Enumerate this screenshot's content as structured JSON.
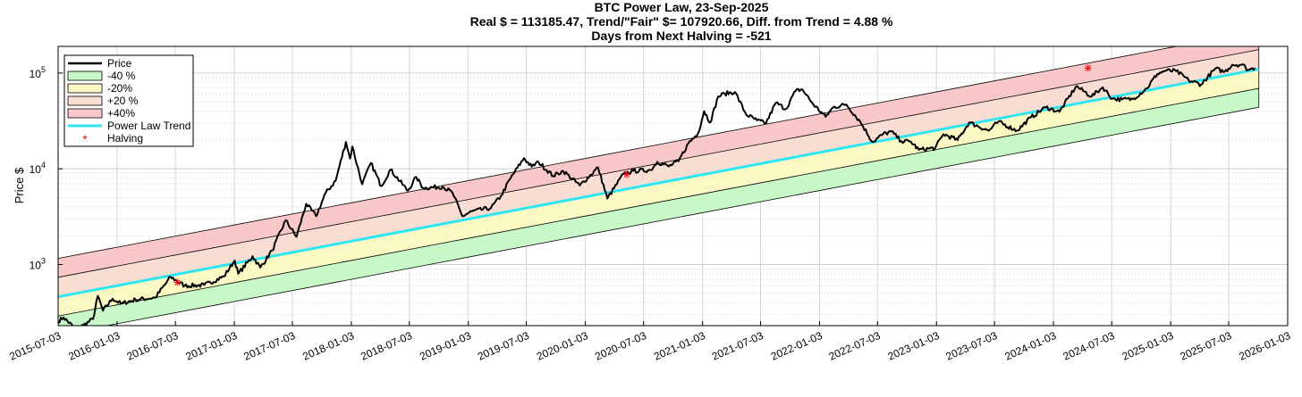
{
  "chart_data": {
    "type": "line",
    "title_lines": [
      "BTC Power Law, 23-Sep-2025",
      "Real $ = 113185.47, Trend/\"Fair\" $=  107920.66, Diff. from Trend = 4.88 %",
      "Days from Next Halving = -521"
    ],
    "ylabel": "Price $",
    "xlabel": "",
    "y_scale": "log",
    "ylim": [
      230,
      190000
    ],
    "xlim": [
      "2015-07-03",
      "2026-01-03"
    ],
    "x_ticks": [
      "2015-07-03",
      "2016-01-03",
      "2016-07-03",
      "2017-01-03",
      "2017-07-03",
      "2018-01-03",
      "2018-07-03",
      "2019-01-03",
      "2019-07-03",
      "2020-01-03",
      "2020-07-03",
      "2021-01-03",
      "2021-07-03",
      "2022-01-03",
      "2022-07-03",
      "2023-01-03",
      "2023-07-03",
      "2024-01-03",
      "2024-07-03",
      "2025-01-03",
      "2025-07-03",
      "2026-01-03"
    ],
    "y_tick_values": [
      1000,
      10000,
      100000
    ],
    "y_tick_labels": [
      {
        "base": "10",
        "exp": "3"
      },
      {
        "base": "10",
        "exp": "4"
      },
      {
        "base": "10",
        "exp": "5"
      }
    ],
    "grid": true,
    "legend_position": "top-left",
    "legend": [
      {
        "key": "price",
        "label": "Price",
        "kind": "line",
        "color": "#000000"
      },
      {
        "key": "m40",
        "label": "-40 %",
        "kind": "patch",
        "color": "#c8f7c8"
      },
      {
        "key": "m20",
        "label": "-20%",
        "kind": "patch",
        "color": "#fbf8c4"
      },
      {
        "key": "p20",
        "label": "+20 %",
        "kind": "patch",
        "color": "#f8ddd2"
      },
      {
        "key": "p40",
        "label": "+40%",
        "kind": "patch",
        "color": "#f8c7c8"
      },
      {
        "key": "trend",
        "label": "Power Law Trend",
        "kind": "line",
        "color": "#2ee6f2"
      },
      {
        "key": "halving",
        "label": "Halving",
        "kind": "marker",
        "color": "#e01010"
      }
    ],
    "band_colors": {
      "m40": "#c8f7c8",
      "m20": "#fbf8c4",
      "p20": "#f8ddd2",
      "p40": "#f8c7c8"
    },
    "trend": {
      "color": "#2ee6f2",
      "points": [
        {
          "date": "2015-07-03",
          "value": 460
        },
        {
          "date": "2025-09-23",
          "value": 107920.66
        }
      ]
    },
    "band_multipliers": {
      "upper_outer": 2.52,
      "upper_inner": 1.6,
      "lower_inner": 0.63,
      "lower_outer": 0.4
    },
    "halving": [
      {
        "date": "2016-07-09",
        "value": 650
      },
      {
        "date": "2020-05-11",
        "value": 8700
      },
      {
        "date": "2024-04-20",
        "value": 113000
      }
    ],
    "price": [
      {
        "date": "2015-07-03",
        "value": 255
      },
      {
        "date": "2015-07-20",
        "value": 280
      },
      {
        "date": "2015-08-25",
        "value": 215
      },
      {
        "date": "2015-09-20",
        "value": 232
      },
      {
        "date": "2015-10-20",
        "value": 270
      },
      {
        "date": "2015-11-04",
        "value": 470
      },
      {
        "date": "2015-11-20",
        "value": 330
      },
      {
        "date": "2015-12-20",
        "value": 440
      },
      {
        "date": "2016-01-15",
        "value": 390
      },
      {
        "date": "2016-03-01",
        "value": 430
      },
      {
        "date": "2016-05-01",
        "value": 450
      },
      {
        "date": "2016-06-18",
        "value": 740
      },
      {
        "date": "2016-08-01",
        "value": 600
      },
      {
        "date": "2016-10-01",
        "value": 610
      },
      {
        "date": "2016-12-01",
        "value": 750
      },
      {
        "date": "2017-01-04",
        "value": 1100
      },
      {
        "date": "2017-01-15",
        "value": 800
      },
      {
        "date": "2017-03-01",
        "value": 1220
      },
      {
        "date": "2017-03-25",
        "value": 930
      },
      {
        "date": "2017-05-01",
        "value": 1400
      },
      {
        "date": "2017-06-12",
        "value": 2900
      },
      {
        "date": "2017-07-16",
        "value": 1950
      },
      {
        "date": "2017-08-15",
        "value": 4300
      },
      {
        "date": "2017-09-15",
        "value": 3200
      },
      {
        "date": "2017-10-15",
        "value": 5600
      },
      {
        "date": "2017-11-15",
        "value": 7500
      },
      {
        "date": "2017-12-17",
        "value": 19100
      },
      {
        "date": "2017-12-30",
        "value": 12800
      },
      {
        "date": "2018-01-06",
        "value": 17100
      },
      {
        "date": "2018-02-06",
        "value": 6900
      },
      {
        "date": "2018-03-05",
        "value": 11500
      },
      {
        "date": "2018-04-06",
        "value": 6600
      },
      {
        "date": "2018-05-05",
        "value": 9800
      },
      {
        "date": "2018-06-28",
        "value": 5900
      },
      {
        "date": "2018-07-25",
        "value": 8200
      },
      {
        "date": "2018-08-15",
        "value": 6300
      },
      {
        "date": "2018-10-15",
        "value": 6500
      },
      {
        "date": "2018-11-15",
        "value": 5600
      },
      {
        "date": "2018-12-15",
        "value": 3200
      },
      {
        "date": "2019-01-15",
        "value": 3600
      },
      {
        "date": "2019-03-15",
        "value": 3900
      },
      {
        "date": "2019-04-15",
        "value": 5200
      },
      {
        "date": "2019-05-15",
        "value": 8000
      },
      {
        "date": "2019-06-26",
        "value": 12900
      },
      {
        "date": "2019-07-20",
        "value": 10500
      },
      {
        "date": "2019-08-10",
        "value": 11800
      },
      {
        "date": "2019-09-25",
        "value": 8400
      },
      {
        "date": "2019-10-26",
        "value": 9500
      },
      {
        "date": "2019-12-17",
        "value": 6700
      },
      {
        "date": "2020-02-12",
        "value": 10300
      },
      {
        "date": "2020-03-12",
        "value": 4900
      },
      {
        "date": "2020-05-01",
        "value": 8800
      },
      {
        "date": "2020-06-01",
        "value": 9500
      },
      {
        "date": "2020-07-25",
        "value": 9700
      },
      {
        "date": "2020-08-15",
        "value": 11800
      },
      {
        "date": "2020-09-20",
        "value": 10600
      },
      {
        "date": "2020-10-20",
        "value": 12000
      },
      {
        "date": "2020-11-20",
        "value": 18500
      },
      {
        "date": "2020-12-20",
        "value": 23500
      },
      {
        "date": "2021-01-08",
        "value": 40000
      },
      {
        "date": "2021-01-27",
        "value": 30400
      },
      {
        "date": "2021-02-21",
        "value": 57000
      },
      {
        "date": "2021-03-13",
        "value": 61000
      },
      {
        "date": "2021-04-14",
        "value": 63500
      },
      {
        "date": "2021-05-19",
        "value": 37000
      },
      {
        "date": "2021-06-22",
        "value": 32000
      },
      {
        "date": "2021-07-20",
        "value": 30000
      },
      {
        "date": "2021-08-20",
        "value": 49000
      },
      {
        "date": "2021-09-20",
        "value": 42000
      },
      {
        "date": "2021-10-20",
        "value": 65000
      },
      {
        "date": "2021-11-10",
        "value": 67500
      },
      {
        "date": "2021-12-15",
        "value": 47000
      },
      {
        "date": "2022-01-22",
        "value": 35000
      },
      {
        "date": "2022-02-15",
        "value": 44000
      },
      {
        "date": "2022-03-28",
        "value": 47000
      },
      {
        "date": "2022-05-10",
        "value": 31000
      },
      {
        "date": "2022-06-18",
        "value": 19000
      },
      {
        "date": "2022-07-20",
        "value": 23000
      },
      {
        "date": "2022-08-15",
        "value": 24500
      },
      {
        "date": "2022-09-15",
        "value": 19500
      },
      {
        "date": "2022-10-15",
        "value": 19200
      },
      {
        "date": "2022-11-09",
        "value": 15800
      },
      {
        "date": "2022-12-30",
        "value": 16500
      },
      {
        "date": "2023-01-25",
        "value": 23000
      },
      {
        "date": "2023-03-10",
        "value": 20000
      },
      {
        "date": "2023-04-15",
        "value": 30500
      },
      {
        "date": "2023-06-15",
        "value": 25000
      },
      {
        "date": "2023-07-15",
        "value": 31000
      },
      {
        "date": "2023-09-11",
        "value": 25000
      },
      {
        "date": "2023-10-25",
        "value": 34500
      },
      {
        "date": "2023-12-10",
        "value": 44000
      },
      {
        "date": "2024-01-22",
        "value": 39500
      },
      {
        "date": "2024-03-14",
        "value": 73000
      },
      {
        "date": "2024-05-01",
        "value": 57000
      },
      {
        "date": "2024-06-05",
        "value": 71000
      },
      {
        "date": "2024-07-05",
        "value": 54000
      },
      {
        "date": "2024-08-05",
        "value": 53000
      },
      {
        "date": "2024-09-06",
        "value": 53500
      },
      {
        "date": "2024-10-20",
        "value": 69000
      },
      {
        "date": "2024-11-22",
        "value": 98000
      },
      {
        "date": "2024-12-17",
        "value": 106000
      },
      {
        "date": "2025-01-20",
        "value": 105000
      },
      {
        "date": "2025-02-28",
        "value": 84000
      },
      {
        "date": "2025-04-08",
        "value": 76000
      },
      {
        "date": "2025-05-22",
        "value": 111000
      },
      {
        "date": "2025-06-20",
        "value": 103000
      },
      {
        "date": "2025-07-14",
        "value": 122000
      },
      {
        "date": "2025-08-14",
        "value": 123000
      },
      {
        "date": "2025-09-01",
        "value": 108000
      },
      {
        "date": "2025-09-23",
        "value": 113185.47
      }
    ]
  }
}
